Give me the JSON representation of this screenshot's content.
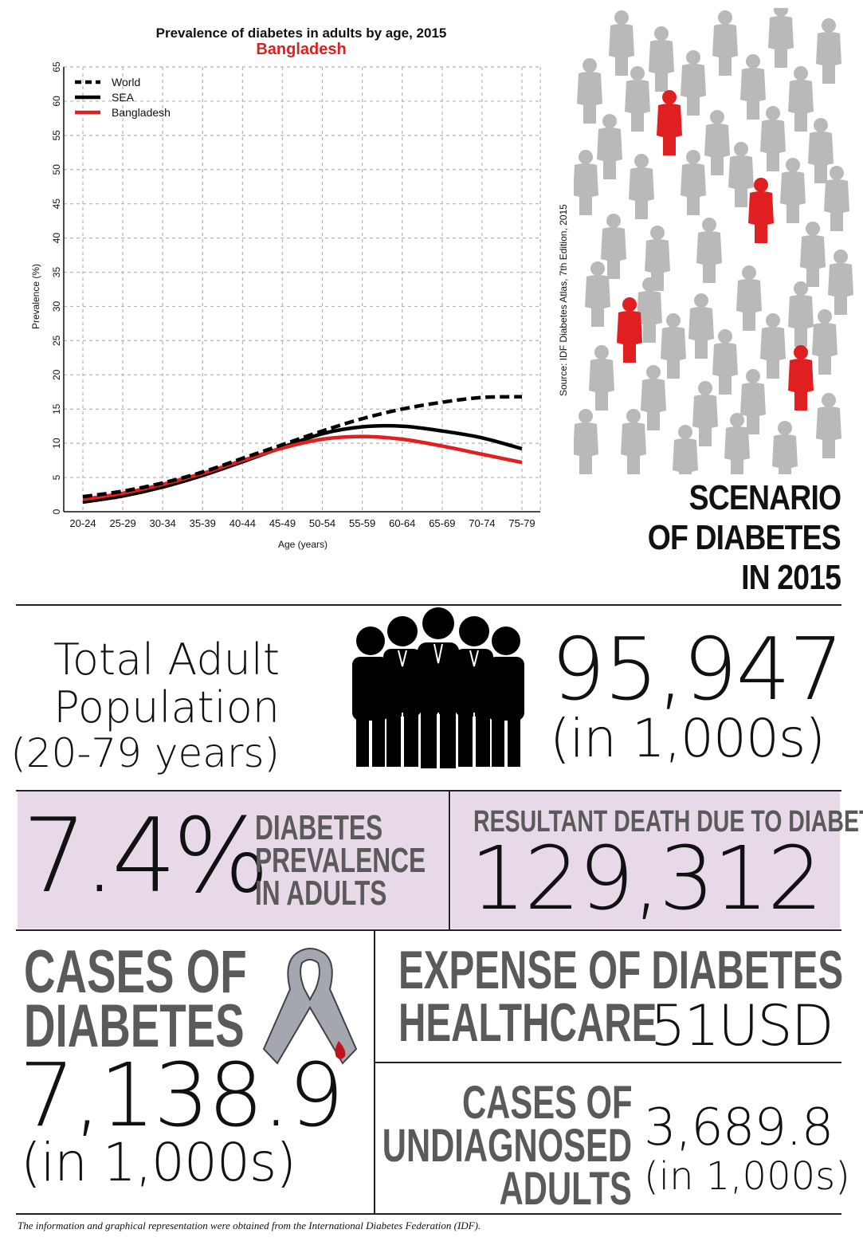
{
  "chart_data": {
    "type": "line",
    "title": "Prevalence of diabetes in adults by age, 2015",
    "subtitle": "Bangladesh",
    "xlabel": "Age (years)",
    "ylabel": "Prevalence (%)",
    "ylim": [
      0,
      65
    ],
    "yticks": [
      "0",
      "5",
      "10",
      "15",
      "20",
      "25",
      "30",
      "35",
      "40",
      "45",
      "50",
      "55",
      "60",
      "65"
    ],
    "categories": [
      "20-24",
      "25-29",
      "30-34",
      "35-39",
      "40-44",
      "45-49",
      "50-54",
      "55-59",
      "60-64",
      "65-69",
      "70-74",
      "75-79"
    ],
    "grid": true,
    "legend_position": "top-left",
    "series": [
      {
        "name": "World",
        "style": "dashed",
        "color": "#000000",
        "values": [
          2.2,
          3.0,
          4.2,
          5.8,
          7.8,
          9.8,
          11.8,
          13.6,
          15.0,
          16.0,
          16.7,
          16.8
        ]
      },
      {
        "name": "SEA",
        "style": "solid",
        "color": "#000000",
        "values": [
          1.4,
          2.3,
          3.6,
          5.3,
          7.3,
          9.4,
          11.4,
          12.4,
          12.5,
          11.8,
          10.8,
          9.2
        ]
      },
      {
        "name": "Bangladesh",
        "style": "solid",
        "color": "#e02020",
        "values": [
          1.8,
          2.7,
          4.0,
          5.6,
          7.5,
          9.3,
          10.6,
          11.0,
          10.6,
          9.6,
          8.4,
          7.2
        ]
      }
    ]
  },
  "source": "Source: IDF Diabetes Atlas, 7th Edition, 2015",
  "scenario": {
    "line1": "SCENARIO",
    "line2": "OF DIABETES",
    "line3": "IN 2015"
  },
  "population": {
    "label1": "Total Adult",
    "label2": "Population",
    "label3": "(20-79 years)",
    "value": "95,947",
    "unit": "(in 1,000s)"
  },
  "prevalence": {
    "value": "7.4%",
    "label1": "DIABETES",
    "label2": "PREVALENCE",
    "label3": "IN ADULTS"
  },
  "deaths": {
    "label": "RESULTANT DEATH DUE TO DIABETES",
    "value": "129,312"
  },
  "cases": {
    "label1": "CASES OF",
    "label2": "DIABETES",
    "value": "7,138.9",
    "unit": "(in 1,000s)"
  },
  "expense": {
    "label1": "EXPENSE OF DIABETES",
    "label2": "HEALTHCARE",
    "value": "51USD"
  },
  "undiagnosed": {
    "label1": "CASES OF",
    "label2": "UNDIAGNOSED",
    "label3": "ADULTS",
    "value": "3,689.8",
    "unit": "(in 1,000s)"
  },
  "footnote": "The information and graphical representation were obtained from the International Diabetes Federation (IDF).",
  "colors": {
    "accent": "#e02020",
    "panel": "#e8d9e8",
    "label_gray": "#5a5a5a",
    "crowd_gray": "#b9b9b9"
  }
}
